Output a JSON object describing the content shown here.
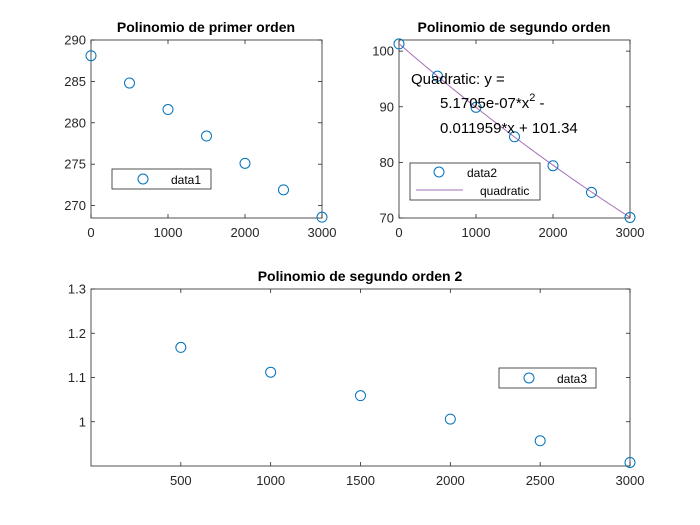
{
  "colors": {
    "marker": "#0072BD",
    "fit": "#A66FB5"
  },
  "chart_data": [
    {
      "type": "scatter",
      "title": "Polinomio de primer orden",
      "xlabel": "",
      "ylabel": "",
      "xlim": [
        0,
        3000
      ],
      "ylim": [
        268.5,
        290
      ],
      "xticks": [
        0,
        1000,
        2000,
        3000
      ],
      "yticks": [
        270,
        275,
        280,
        285,
        290
      ],
      "xtick_labels": [
        "0",
        "1000",
        "2000",
        "3000"
      ],
      "ytick_labels": [
        "270",
        "275",
        "280",
        "285",
        "290"
      ],
      "grid": false,
      "legend_position": "lower-left",
      "series": [
        {
          "name": "data1",
          "marker": "circle",
          "x": [
            0,
            500,
            1000,
            1500,
            2000,
            2500,
            3000
          ],
          "y": [
            288.1,
            284.8,
            281.6,
            278.4,
            275.1,
            271.9,
            268.6
          ]
        }
      ]
    },
    {
      "type": "scatter",
      "title": "Polinomio de segundo orden",
      "xlabel": "",
      "ylabel": "",
      "xlim": [
        0,
        3000
      ],
      "ylim": [
        70,
        102
      ],
      "xticks": [
        0,
        1000,
        2000,
        3000
      ],
      "yticks": [
        70,
        80,
        90,
        100
      ],
      "xtick_labels": [
        "0",
        "1000",
        "2000",
        "3000"
      ],
      "ytick_labels": [
        "70",
        "80",
        "90",
        "100"
      ],
      "grid": false,
      "legend_position": "lower-left",
      "annotation": {
        "line1": "Quadratic:  y =",
        "line2_base": "5.1705e-07*x",
        "line2_sup": "2",
        "line2_tail": " -",
        "line3": "0.011959*x + 101.34"
      },
      "fit": {
        "name": "quadratic",
        "coefficients": [
          5.1705e-07,
          -0.011959,
          101.34
        ]
      },
      "series": [
        {
          "name": "data2",
          "marker": "circle",
          "x": [
            0,
            500,
            1000,
            1500,
            2000,
            2500,
            3000
          ],
          "y": [
            101.3,
            95.5,
            89.9,
            84.6,
            79.4,
            74.6,
            70.1
          ]
        }
      ]
    },
    {
      "type": "scatter",
      "title": "Polinomio de segundo orden 2",
      "xlabel": "",
      "ylabel": "",
      "xlim": [
        0,
        3000
      ],
      "ylim": [
        0.9,
        1.3
      ],
      "xticks": [
        500,
        1000,
        1500,
        2000,
        2500,
        3000
      ],
      "yticks": [
        1.0,
        1.1,
        1.2,
        1.3
      ],
      "xtick_labels": [
        "500",
        "1000",
        "1500",
        "2000",
        "2500",
        "3000"
      ],
      "ytick_labels": [
        "1",
        "1.1",
        "1.2",
        "1.3"
      ],
      "grid": false,
      "legend_position": "right",
      "series": [
        {
          "name": "data3",
          "marker": "circle",
          "x": [
            500,
            1000,
            1500,
            2000,
            2500,
            3000
          ],
          "y": [
            1.168,
            1.112,
            1.059,
            1.006,
            0.957,
            0.908
          ]
        }
      ]
    }
  ]
}
